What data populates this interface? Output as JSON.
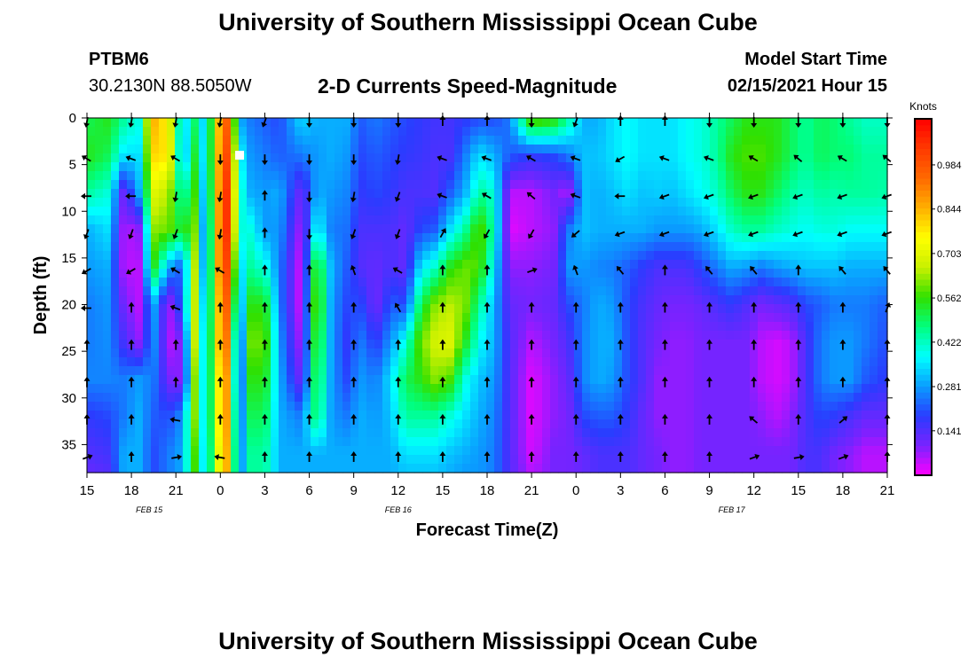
{
  "header": {
    "title": "University of Southern Mississippi Ocean Cube",
    "station_id": "PTBM6",
    "station_coords": "30.2130N 88.5050W",
    "chart_title": "2-D Currents Speed-Magnitude",
    "model_label": "Model Start Time",
    "model_time": "02/15/2021 Hour 15"
  },
  "footer": {
    "title": "University of Southern Mississippi Ocean Cube"
  },
  "chart_data": {
    "type": "heatmap",
    "title": "2-D Currents Speed-Magnitude",
    "xlabel": "Forecast Time(Z)",
    "ylabel": "Depth (ft)",
    "x_tick_labels": [
      "15",
      "18",
      "21",
      "0",
      "3",
      "6",
      "9",
      "12",
      "15",
      "18",
      "21",
      "0",
      "3",
      "6",
      "9",
      "12",
      "15",
      "18",
      "21"
    ],
    "date_labels": [
      {
        "text": "FEB 15",
        "tick_index": 1.4
      },
      {
        "text": "FEB 16",
        "tick_index": 7
      },
      {
        "text": "FEB 17",
        "tick_index": 14.5
      }
    ],
    "y_ticks": [
      0,
      5,
      10,
      15,
      20,
      25,
      30,
      35
    ],
    "ylim": [
      0,
      38
    ],
    "x_hours_range": [
      0,
      54
    ],
    "colorbar": {
      "unit": "Knots",
      "tick_labels": [
        "0.984",
        "0.844",
        "0.703",
        "0.562",
        "0.422",
        "0.281",
        "0.141"
      ],
      "tick_values": [
        0.984,
        0.844,
        0.703,
        0.562,
        0.422,
        0.281,
        0.141
      ],
      "range": [
        0.0,
        1.13
      ],
      "colors": [
        "#ff00ff",
        "#7a22ff",
        "#2a3cff",
        "#0a9cff",
        "#00ffff",
        "#00ff80",
        "#30e000",
        "#c8f000",
        "#ffff00",
        "#ffb000",
        "#ff6a00",
        "#ff3a00",
        "#ff0000"
      ]
    },
    "depths_ft": [
      0,
      4,
      8,
      12,
      16,
      20,
      24,
      28,
      32,
      36,
      38
    ],
    "columns": [
      {
        "hour": 0,
        "speeds": [
          0.5,
          0.55,
          0.45,
          0.3,
          0.28,
          0.25,
          0.25,
          0.26,
          0.18,
          0.14,
          0.12
        ]
      },
      {
        "hour": 1.5,
        "speeds": [
          0.55,
          0.5,
          0.4,
          0.35,
          0.3,
          0.28,
          0.27,
          0.26,
          0.2,
          0.16,
          0.14
        ]
      },
      {
        "hour": 2.5,
        "speeds": [
          0.45,
          0.35,
          0.1,
          0.05,
          0.05,
          0.1,
          0.15,
          0.25,
          0.25,
          0.3,
          0.3
        ]
      },
      {
        "hour": 3.5,
        "speeds": [
          0.4,
          0.35,
          0.3,
          0.08,
          0.05,
          0.05,
          0.08,
          0.28,
          0.3,
          0.3,
          0.3
        ]
      },
      {
        "hour": 4.5,
        "speeds": [
          0.85,
          0.8,
          0.7,
          0.62,
          0.55,
          0.3,
          0.28,
          0.25,
          0.22,
          0.2,
          0.2
        ]
      },
      {
        "hour": 5.5,
        "speeds": [
          0.75,
          0.78,
          0.65,
          0.6,
          0.3,
          0.05,
          0.05,
          0.1,
          0.2,
          0.25,
          0.25
        ]
      },
      {
        "hour": 6.5,
        "speeds": [
          0.3,
          0.25,
          0.4,
          0.5,
          0.2,
          0.25,
          0.1,
          0.08,
          0.28,
          0.3,
          0.3
        ]
      },
      {
        "hour": 7.2,
        "speeds": [
          0.5,
          0.55,
          0.6,
          0.65,
          0.7,
          0.7,
          0.7,
          0.65,
          0.65,
          0.6,
          0.6
        ]
      },
      {
        "hour": 8,
        "speeds": [
          0.3,
          0.3,
          0.25,
          0.2,
          0.2,
          0.25,
          0.28,
          0.3,
          0.3,
          0.3,
          0.3
        ]
      },
      {
        "hour": 8.8,
        "speeds": [
          0.8,
          0.82,
          0.84,
          0.85,
          0.85,
          0.8,
          0.8,
          0.75,
          0.75,
          0.7,
          0.7
        ]
      },
      {
        "hour": 9.6,
        "speeds": [
          1.0,
          1.05,
          1.1,
          1.1,
          1.05,
          1.0,
          0.95,
          0.9,
          0.9,
          0.88,
          0.88
        ]
      },
      {
        "hour": 10.2,
        "speeds": [
          0.3,
          0.4,
          0.45,
          0.4,
          0.3,
          0.2,
          0.1,
          0.1,
          0.15,
          0.2,
          0.2
        ]
      },
      {
        "hour": 11,
        "speeds": [
          0.25,
          0.28,
          0.3,
          0.4,
          0.45,
          0.55,
          0.6,
          0.55,
          0.5,
          0.45,
          0.45
        ]
      },
      {
        "hour": 12,
        "speeds": [
          0.22,
          0.25,
          0.28,
          0.28,
          0.4,
          0.55,
          0.6,
          0.55,
          0.5,
          0.45,
          0.45
        ]
      },
      {
        "hour": 13,
        "speeds": [
          0.2,
          0.22,
          0.3,
          0.28,
          0.25,
          0.25,
          0.28,
          0.3,
          0.3,
          0.3,
          0.3
        ]
      },
      {
        "hour": 14.5,
        "speeds": [
          0.35,
          0.25,
          0.1,
          0.05,
          0.02,
          0.02,
          0.05,
          0.1,
          0.25,
          0.3,
          0.3
        ]
      },
      {
        "hour": 15.5,
        "speeds": [
          0.3,
          0.28,
          0.3,
          0.4,
          0.6,
          0.65,
          0.6,
          0.55,
          0.5,
          0.3,
          0.3
        ]
      },
      {
        "hour": 16.5,
        "speeds": [
          0.3,
          0.3,
          0.28,
          0.25,
          0.3,
          0.28,
          0.28,
          0.28,
          0.28,
          0.3,
          0.3
        ]
      },
      {
        "hour": 17.5,
        "speeds": [
          0.3,
          0.28,
          0.26,
          0.24,
          0.22,
          0.2,
          0.18,
          0.2,
          0.25,
          0.3,
          0.3
        ]
      },
      {
        "hour": 18.5,
        "speeds": [
          0.22,
          0.2,
          0.18,
          0.15,
          0.14,
          0.2,
          0.25,
          0.28,
          0.3,
          0.3,
          0.3
        ]
      },
      {
        "hour": 19.5,
        "speeds": [
          0.25,
          0.22,
          0.2,
          0.15,
          0.12,
          0.1,
          0.18,
          0.25,
          0.28,
          0.3,
          0.3
        ]
      },
      {
        "hour": 20.5,
        "speeds": [
          0.22,
          0.2,
          0.18,
          0.15,
          0.15,
          0.22,
          0.28,
          0.35,
          0.32,
          0.3,
          0.3
        ]
      },
      {
        "hour": 21.5,
        "speeds": [
          0.2,
          0.18,
          0.15,
          0.12,
          0.12,
          0.2,
          0.4,
          0.5,
          0.45,
          0.35,
          0.32
        ]
      },
      {
        "hour": 22.5,
        "speeds": [
          0.18,
          0.17,
          0.15,
          0.2,
          0.35,
          0.5,
          0.6,
          0.55,
          0.45,
          0.35,
          0.32
        ]
      },
      {
        "hour": 23.5,
        "speeds": [
          0.16,
          0.15,
          0.14,
          0.22,
          0.42,
          0.62,
          0.68,
          0.62,
          0.45,
          0.35,
          0.32
        ]
      },
      {
        "hour": 24.5,
        "speeds": [
          0.16,
          0.15,
          0.22,
          0.35,
          0.55,
          0.65,
          0.7,
          0.58,
          0.4,
          0.32,
          0.3
        ]
      },
      {
        "hour": 25.5,
        "speeds": [
          0.18,
          0.25,
          0.3,
          0.45,
          0.6,
          0.62,
          0.55,
          0.4,
          0.35,
          0.3,
          0.28
        ]
      },
      {
        "hour": 26.5,
        "speeds": [
          0.2,
          0.35,
          0.45,
          0.6,
          0.58,
          0.45,
          0.38,
          0.32,
          0.3,
          0.28,
          0.28
        ]
      },
      {
        "hour": 27.5,
        "speeds": [
          0.2,
          0.3,
          0.4,
          0.42,
          0.35,
          0.3,
          0.3,
          0.28,
          0.26,
          0.25,
          0.25
        ]
      },
      {
        "hour": 28.5,
        "speeds": [
          0.25,
          0.22,
          0.05,
          0.02,
          0.08,
          0.12,
          0.14,
          0.14,
          0.14,
          0.14,
          0.14
        ]
      },
      {
        "hour": 30,
        "speeds": [
          0.62,
          0.18,
          0.05,
          0.05,
          0.08,
          0.1,
          0.05,
          0.02,
          0.02,
          0.03,
          0.05
        ]
      },
      {
        "hour": 31.5,
        "speeds": [
          0.58,
          0.2,
          0.1,
          0.08,
          0.1,
          0.12,
          0.1,
          0.08,
          0.08,
          0.1,
          0.1
        ]
      },
      {
        "hour": 32.5,
        "speeds": [
          0.45,
          0.25,
          0.05,
          0.25,
          0.28,
          0.2,
          0.15,
          0.12,
          0.1,
          0.1,
          0.1
        ]
      },
      {
        "hour": 33.5,
        "speeds": [
          0.3,
          0.32,
          0.32,
          0.32,
          0.28,
          0.25,
          0.26,
          0.26,
          0.2,
          0.12,
          0.12
        ]
      },
      {
        "hour": 34.5,
        "speeds": [
          0.3,
          0.32,
          0.3,
          0.3,
          0.26,
          0.3,
          0.3,
          0.3,
          0.22,
          0.15,
          0.15
        ]
      },
      {
        "hour": 35.5,
        "speeds": [
          0.35,
          0.35,
          0.32,
          0.3,
          0.25,
          0.28,
          0.3,
          0.28,
          0.22,
          0.15,
          0.15
        ]
      },
      {
        "hour": 36.5,
        "speeds": [
          0.38,
          0.38,
          0.35,
          0.3,
          0.22,
          0.2,
          0.2,
          0.2,
          0.18,
          0.15,
          0.15
        ]
      },
      {
        "hour": 37.5,
        "speeds": [
          0.35,
          0.35,
          0.32,
          0.3,
          0.18,
          0.15,
          0.14,
          0.14,
          0.12,
          0.12,
          0.12
        ]
      },
      {
        "hour": 38.5,
        "speeds": [
          0.35,
          0.35,
          0.33,
          0.28,
          0.15,
          0.12,
          0.1,
          0.08,
          0.08,
          0.1,
          0.1
        ]
      },
      {
        "hour": 39.5,
        "speeds": [
          0.35,
          0.35,
          0.32,
          0.28,
          0.15,
          0.1,
          0.08,
          0.08,
          0.08,
          0.08,
          0.08
        ]
      },
      {
        "hour": 40.5,
        "speeds": [
          0.38,
          0.38,
          0.35,
          0.28,
          0.15,
          0.1,
          0.08,
          0.08,
          0.08,
          0.08,
          0.08
        ]
      },
      {
        "hour": 41.5,
        "speeds": [
          0.4,
          0.4,
          0.38,
          0.3,
          0.2,
          0.12,
          0.1,
          0.1,
          0.1,
          0.1,
          0.1
        ]
      },
      {
        "hour": 42.5,
        "speeds": [
          0.45,
          0.45,
          0.42,
          0.35,
          0.25,
          0.15,
          0.1,
          0.1,
          0.1,
          0.1,
          0.1
        ]
      },
      {
        "hour": 43.5,
        "speeds": [
          0.5,
          0.55,
          0.5,
          0.42,
          0.3,
          0.18,
          0.1,
          0.1,
          0.1,
          0.1,
          0.1
        ]
      },
      {
        "hour": 44.5,
        "speeds": [
          0.55,
          0.58,
          0.55,
          0.45,
          0.28,
          0.14,
          0.1,
          0.1,
          0.1,
          0.1,
          0.1
        ]
      },
      {
        "hour": 45.5,
        "speeds": [
          0.55,
          0.58,
          0.55,
          0.45,
          0.25,
          0.1,
          0.05,
          0.05,
          0.08,
          0.1,
          0.1
        ]
      },
      {
        "hour": 46.5,
        "speeds": [
          0.55,
          0.55,
          0.5,
          0.42,
          0.28,
          0.12,
          0.03,
          0.03,
          0.05,
          0.1,
          0.1
        ]
      },
      {
        "hour": 47.5,
        "speeds": [
          0.5,
          0.5,
          0.45,
          0.4,
          0.3,
          0.14,
          0.05,
          0.05,
          0.08,
          0.1,
          0.1
        ]
      },
      {
        "hour": 48.5,
        "speeds": [
          0.45,
          0.45,
          0.42,
          0.38,
          0.32,
          0.2,
          0.15,
          0.15,
          0.15,
          0.15,
          0.15
        ]
      },
      {
        "hour": 49.5,
        "speeds": [
          0.5,
          0.5,
          0.45,
          0.4,
          0.32,
          0.22,
          0.25,
          0.25,
          0.2,
          0.15,
          0.15
        ]
      },
      {
        "hour": 50.5,
        "speeds": [
          0.48,
          0.48,
          0.44,
          0.4,
          0.32,
          0.25,
          0.28,
          0.28,
          0.18,
          0.1,
          0.1
        ]
      },
      {
        "hour": 51.5,
        "speeds": [
          0.45,
          0.48,
          0.45,
          0.38,
          0.3,
          0.25,
          0.28,
          0.28,
          0.15,
          0.08,
          0.08
        ]
      },
      {
        "hour": 52.5,
        "speeds": [
          0.42,
          0.45,
          0.45,
          0.38,
          0.3,
          0.25,
          0.25,
          0.22,
          0.12,
          0.05,
          0.05
        ]
      },
      {
        "hour": 54,
        "speeds": [
          0.42,
          0.45,
          0.44,
          0.38,
          0.3,
          0.22,
          0.2,
          0.18,
          0.12,
          0.05,
          0.05
        ]
      }
    ],
    "vector_hours": [
      0,
      3,
      6,
      9,
      12,
      15,
      18,
      21,
      24,
      27,
      30,
      33,
      36,
      39,
      42,
      45,
      48,
      51,
      54
    ],
    "vector_depths_ft": [
      0,
      4,
      8,
      12,
      16,
      20,
      24,
      28,
      32,
      36
    ],
    "vector_directions_deg": [
      [
        190,
        190,
        190,
        190,
        200,
        180,
        180,
        180,
        0,
        0,
        180,
        200,
        0,
        0,
        180,
        180,
        180,
        180,
        180
      ],
      [
        300,
        290,
        300,
        180,
        180,
        180,
        180,
        190,
        290,
        290,
        300,
        290,
        240,
        290,
        290,
        300,
        310,
        300,
        310
      ],
      [
        270,
        270,
        190,
        190,
        0,
        180,
        190,
        200,
        290,
        300,
        310,
        290,
        270,
        250,
        250,
        250,
        250,
        250,
        250
      ],
      [
        200,
        200,
        200,
        190,
        0,
        180,
        200,
        200,
        30,
        210,
        210,
        230,
        250,
        250,
        250,
        250,
        250,
        250,
        250
      ],
      [
        240,
        240,
        300,
        300,
        0,
        0,
        340,
        300,
        0,
        0,
        70,
        340,
        320,
        0,
        320,
        320,
        0,
        320,
        320
      ],
      [
        270,
        0,
        290,
        0,
        0,
        0,
        0,
        330,
        0,
        0,
        0,
        0,
        0,
        0,
        0,
        0,
        0,
        0,
        20
      ],
      [
        0,
        0,
        0,
        0,
        0,
        0,
        0,
        0,
        0,
        0,
        0,
        0,
        0,
        0,
        0,
        0,
        0,
        0,
        0
      ],
      [
        0,
        0,
        0,
        0,
        0,
        0,
        0,
        0,
        0,
        0,
        0,
        0,
        0,
        0,
        0,
        0,
        0,
        0,
        0
      ],
      [
        0,
        0,
        280,
        0,
        0,
        0,
        0,
        0,
        0,
        0,
        0,
        0,
        0,
        0,
        0,
        310,
        0,
        50,
        0
      ],
      [
        70,
        0,
        80,
        280,
        0,
        0,
        0,
        0,
        0,
        0,
        0,
        0,
        0,
        0,
        0,
        70,
        80,
        70,
        0
      ]
    ],
    "marker": {
      "hour": 10.3,
      "depth_ft": 4
    }
  }
}
